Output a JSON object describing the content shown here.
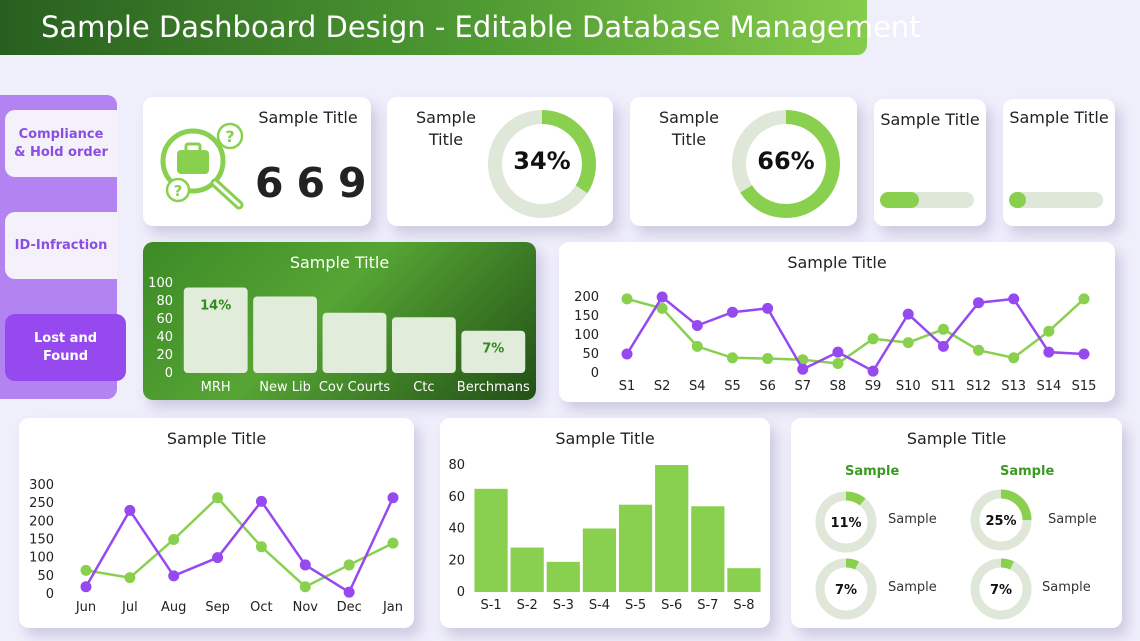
{
  "header": {
    "title": "Sample Dashboard Design - Editable Database Management"
  },
  "sidebar": {
    "items": [
      {
        "label": "Compliance & Hold order",
        "active": false
      },
      {
        "label": "ID-Infraction",
        "active": false
      },
      {
        "label": "Lost and Found",
        "active": true
      }
    ]
  },
  "colors": {
    "green": "#8ad04f",
    "dark_green": "#2f6b1f",
    "purple": "#9549ef",
    "light_green": "#dfe8d8"
  },
  "kpi": {
    "count_card": {
      "title": "Sample Title",
      "value": "669",
      "icon": "search-briefcase-question-icon"
    },
    "donut1": {
      "title": "Sample Title",
      "value": 34,
      "label": "34%"
    },
    "donut2": {
      "title": "Sample Title",
      "value": 66,
      "label": "66%"
    },
    "progress1": {
      "title": "Sample Title",
      "value": 0.42
    },
    "progress2": {
      "title": "Sample Title",
      "value": 0.18
    }
  },
  "charts": [
    {
      "type": "bar",
      "title": "Sample Title",
      "categories": [
        "MRH",
        "New Lib",
        "Cov Courts",
        "Ctc",
        "Berchmans"
      ],
      "values": [
        95,
        85,
        67,
        62,
        47
      ],
      "data_labels": [
        "14%",
        "",
        "",
        "",
        "7%"
      ],
      "yticks": [
        0,
        20,
        40,
        60,
        80,
        100
      ],
      "ylim": [
        0,
        100
      ]
    },
    {
      "type": "line",
      "title": "Sample Title",
      "categories": [
        "S1",
        "S2",
        "S4",
        "S5",
        "S6",
        "S7",
        "S8",
        "S9",
        "S10",
        "S11",
        "S12",
        "S13",
        "S14",
        "S15"
      ],
      "yticks": [
        0,
        50,
        100,
        150,
        200
      ],
      "ylim": [
        0,
        200
      ],
      "series": [
        {
          "color": "#8ad04f",
          "values": [
            195,
            170,
            70,
            40,
            38,
            35,
            25,
            90,
            80,
            115,
            60,
            40,
            110,
            195
          ]
        },
        {
          "color": "#9549ef",
          "values": [
            50,
            200,
            125,
            160,
            170,
            10,
            55,
            5,
            155,
            70,
            185,
            195,
            55,
            50
          ]
        }
      ]
    },
    {
      "type": "line",
      "title": "Sample Title",
      "categories": [
        "Jun",
        "Jul",
        "Aug",
        "Sep",
        "Oct",
        "Nov",
        "Dec",
        "Jan"
      ],
      "yticks": [
        0,
        50,
        100,
        150,
        200,
        250,
        300
      ],
      "ylim": [
        0,
        300
      ],
      "series": [
        {
          "color": "#8ad04f",
          "values": [
            65,
            45,
            150,
            265,
            130,
            20,
            80,
            140
          ]
        },
        {
          "color": "#9549ef",
          "values": [
            20,
            230,
            50,
            100,
            255,
            80,
            5,
            265
          ]
        }
      ]
    },
    {
      "type": "bar",
      "title": "Sample Title",
      "categories": [
        "S-1",
        "S-2",
        "S-3",
        "S-4",
        "S-5",
        "S-6",
        "S-7",
        "S-8"
      ],
      "values": [
        65,
        28,
        19,
        40,
        55,
        80,
        54,
        15
      ],
      "yticks": [
        0,
        20,
        40,
        60,
        80
      ],
      "ylim": [
        0,
        80
      ]
    }
  ],
  "mini_donuts": {
    "title": "Sample Title",
    "headers": [
      "Sample",
      "Sample"
    ],
    "items": [
      {
        "label": "11%",
        "value": 11,
        "caption": "Sample"
      },
      {
        "label": "25%",
        "value": 25,
        "caption": "Sample"
      },
      {
        "label": "7%",
        "value": 7,
        "caption": "Sample"
      },
      {
        "label": "7%",
        "value": 7,
        "caption": "Sample"
      }
    ]
  }
}
